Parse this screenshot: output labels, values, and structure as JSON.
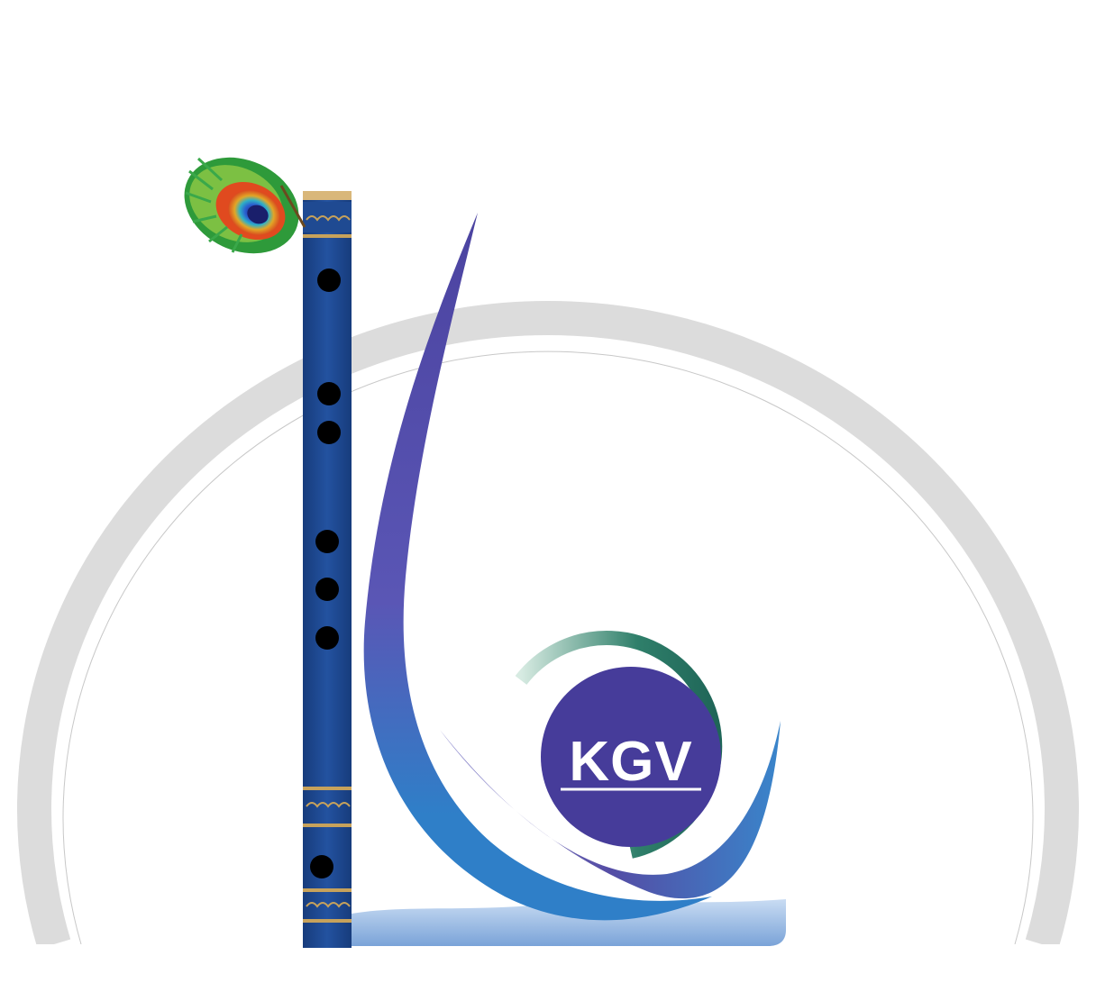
{
  "logo": {
    "text": "KGV",
    "colors": {
      "ring": "#dcdcdc",
      "flute_body": "#1f4a92",
      "flute_band": "#c7a25b",
      "swoosh_purple": "#4b43a0",
      "swoosh_blue": "#2f7fc8",
      "emblem_fill": "#463c9a",
      "emblem_ring_green": "#2f7f6a",
      "water": "#8fb4e0"
    },
    "icons": [
      "peacock-feather-icon",
      "flute-icon",
      "swoosh-icon",
      "water-icon"
    ]
  }
}
